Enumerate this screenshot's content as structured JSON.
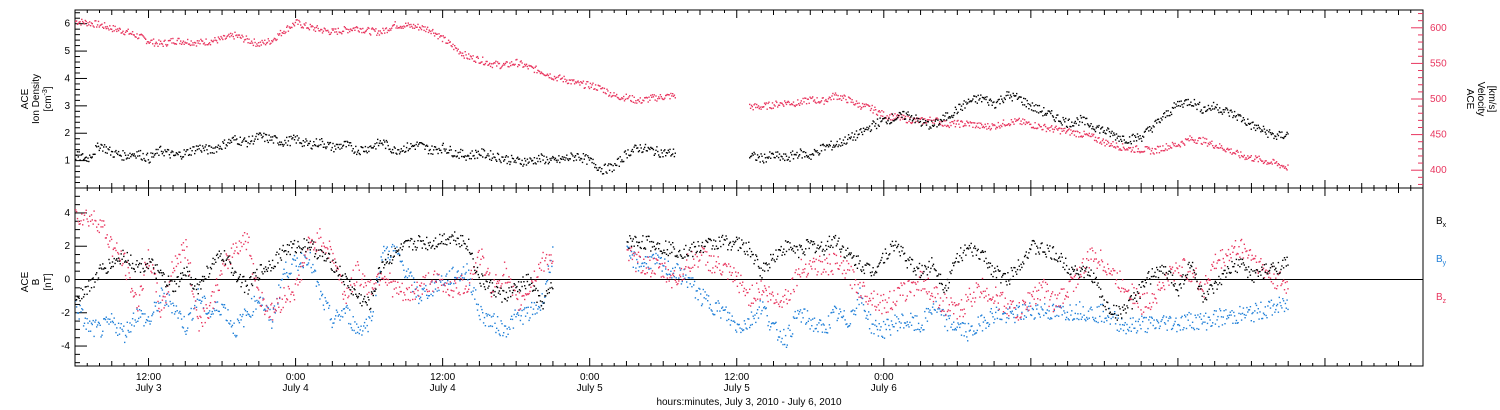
{
  "colors": {
    "black": "#000000",
    "pink": "#e8365f",
    "blue": "#1f7fd8"
  },
  "chart_data": [
    {
      "type": "scatter",
      "panel": "top",
      "ylabel_lines": [
        "ACE",
        "Ion Density",
        "[cm"
      ],
      "ylabel_sup": "-3",
      "ylabel_close": "]",
      "y2label_lines": [
        "ACE",
        "Velocity",
        "[km/s]"
      ],
      "yticks": [
        "1",
        "2",
        "3",
        "4",
        "5",
        "6"
      ],
      "ylim": [
        0,
        6.5
      ],
      "y2ticks": [
        "400",
        "450",
        "500",
        "550",
        "600"
      ],
      "y2lim": [
        375,
        625
      ],
      "x_unit": "hours since 2010-07-02 18:00",
      "xlim": [
        0,
        110
      ],
      "series": [
        {
          "axis": "left",
          "color": "#000000",
          "x": [
            0,
            1,
            2,
            3,
            4,
            5,
            6,
            7,
            8,
            9,
            10,
            11,
            12,
            13,
            14,
            15,
            16,
            17,
            18,
            19,
            20,
            21,
            22,
            23,
            24,
            25,
            26,
            27,
            28,
            29,
            30,
            31,
            32,
            33,
            34,
            35,
            36,
            37,
            38,
            39,
            40,
            41,
            42,
            43,
            44,
            45,
            46,
            47,
            48,
            49,
            50,
            51,
            52,
            53,
            54,
            55,
            56,
            57,
            58,
            59,
            60,
            61,
            62,
            63,
            64,
            65,
            66,
            67,
            68,
            69,
            70,
            71,
            72,
            73,
            74,
            75,
            76,
            77,
            78,
            79,
            80,
            81,
            82,
            83,
            84,
            85,
            86,
            87,
            88,
            89,
            90,
            91,
            92,
            93,
            94,
            95,
            96,
            97,
            98,
            99
          ],
          "y": [
            1.2,
            1.1,
            1.6,
            1.3,
            1.2,
            1.3,
            1.1,
            1.4,
            1.2,
            1.3,
            1.5,
            1.4,
            1.6,
            1.8,
            1.7,
            1.9,
            1.8,
            1.7,
            1.8,
            1.6,
            1.7,
            1.5,
            1.6,
            1.4,
            1.5,
            1.7,
            1.4,
            1.5,
            1.6,
            1.4,
            1.5,
            1.3,
            1.2,
            1.3,
            1.2,
            1.1,
            1.0,
            1.0,
            1.1,
            1.0,
            1.1,
            1.2,
            1.0,
            0.7,
            0.8,
            1.3,
            1.5,
            1.4,
            1.3,
            1.3,
            null,
            null,
            null,
            null,
            null,
            1.2,
            1.1,
            1.2,
            1.1,
            1.3,
            1.2,
            1.5,
            1.6,
            1.8,
            2.0,
            2.3,
            2.5,
            2.6,
            2.7,
            2.4,
            2.3,
            2.6,
            2.9,
            3.2,
            3.3,
            3.1,
            3.4,
            3.3,
            3.0,
            2.8,
            2.6,
            2.4,
            2.5,
            2.3,
            2.1,
            1.9,
            1.8,
            1.9,
            2.3,
            2.7,
            3.1,
            3.2,
            2.9,
            3.0,
            2.8,
            2.6,
            2.3,
            2.1,
            1.9,
            2.0
          ]
        },
        {
          "axis": "right",
          "color": "#e8365f",
          "x": [
            0,
            1,
            2,
            3,
            4,
            5,
            6,
            7,
            8,
            9,
            10,
            11,
            12,
            13,
            14,
            15,
            16,
            17,
            18,
            19,
            20,
            21,
            22,
            23,
            24,
            25,
            26,
            27,
            28,
            29,
            30,
            31,
            32,
            33,
            34,
            35,
            36,
            37,
            38,
            39,
            40,
            41,
            42,
            43,
            44,
            45,
            46,
            47,
            48,
            49,
            50,
            51,
            52,
            53,
            54,
            55,
            56,
            57,
            58,
            59,
            60,
            61,
            62,
            63,
            64,
            65,
            66,
            67,
            68,
            69,
            70,
            71,
            72,
            73,
            74,
            75,
            76,
            77,
            78,
            79,
            80,
            81,
            82,
            83,
            84,
            85,
            86,
            87,
            88,
            89,
            90,
            91,
            92,
            93,
            94,
            95,
            96,
            97,
            98,
            99
          ],
          "y": [
            610,
            608,
            605,
            600,
            596,
            590,
            582,
            578,
            583,
            582,
            580,
            582,
            585,
            590,
            584,
            578,
            583,
            597,
            608,
            602,
            598,
            595,
            598,
            601,
            596,
            595,
            605,
            604,
            602,
            598,
            585,
            572,
            560,
            556,
            550,
            548,
            552,
            545,
            540,
            532,
            528,
            522,
            520,
            515,
            505,
            503,
            498,
            502,
            504,
            506,
            null,
            null,
            null,
            null,
            null,
            490,
            490,
            493,
            496,
            495,
            500,
            498,
            506,
            500,
            492,
            487,
            478,
            475,
            472,
            470,
            472,
            466,
            466,
            466,
            462,
            463,
            468,
            469,
            465,
            461,
            458,
            455,
            452,
            447,
            440,
            435,
            431,
            430,
            428,
            434,
            437,
            445,
            442,
            436,
            430,
            422,
            418,
            414,
            410,
            404
          ]
        }
      ]
    },
    {
      "type": "scatter",
      "panel": "bottom",
      "ylabel_lines": [
        "ACE",
        "B",
        "[nT]"
      ],
      "yticks": [
        "-4",
        "-2",
        "0",
        "2",
        "4"
      ],
      "ylim": [
        -5.2,
        5.5
      ],
      "xlim": [
        0,
        110
      ],
      "xticks": [
        {
          "x": 6,
          "lines": [
            "12:00",
            "July 3"
          ]
        },
        {
          "x": 18,
          "lines": [
            "0:00",
            "July 4"
          ]
        },
        {
          "x": 30,
          "lines": [
            "12:00",
            "July 4"
          ]
        },
        {
          "x": 42,
          "lines": [
            "0:00",
            "July 5"
          ]
        },
        {
          "x": 54,
          "lines": [
            "12:00",
            "July 5"
          ]
        },
        {
          "x": 66,
          "lines": [
            "0:00",
            "July 6"
          ]
        }
      ],
      "xlabel": "hours:minutes, July  3, 2010 - July  6, 2010",
      "legend": [
        {
          "label": "B",
          "sub": "x",
          "color": "#000000"
        },
        {
          "label": "B",
          "sub": "y",
          "color": "#1f7fd8"
        },
        {
          "label": "B",
          "sub": "z",
          "color": "#e8365f"
        }
      ],
      "series": [
        {
          "name": "Bx",
          "color": "#000000",
          "x": [
            0,
            1,
            2,
            3,
            4,
            5,
            6,
            7,
            8,
            9,
            10,
            11,
            12,
            13,
            14,
            15,
            16,
            17,
            18,
            19,
            20,
            21,
            22,
            23,
            24,
            25,
            26,
            27,
            28,
            29,
            30,
            31,
            32,
            33,
            34,
            35,
            36,
            37,
            38,
            39,
            40,
            41,
            42,
            43,
            44,
            45,
            46,
            47,
            48,
            49,
            50,
            51,
            52,
            53,
            54,
            55,
            56,
            57,
            58,
            59,
            60,
            61,
            62,
            63,
            64,
            65,
            66,
            67,
            68,
            69,
            70,
            71,
            72,
            73,
            74,
            75,
            76,
            77,
            78,
            79,
            80,
            81,
            82,
            83,
            84,
            85,
            86,
            87,
            88,
            89,
            90,
            91,
            92,
            93,
            94,
            95,
            96,
            97,
            98,
            99
          ],
          "y": [
            -1.0,
            -0.5,
            0.5,
            1.0,
            1.5,
            0.8,
            1.0,
            0.2,
            -0.5,
            0.5,
            -0.5,
            0.8,
            1.5,
            0.5,
            -0.5,
            0.5,
            1.0,
            1.8,
            2.0,
            2.2,
            1.5,
            1.0,
            0.0,
            -1.0,
            -1.5,
            1.0,
            1.5,
            2.0,
            2.3,
            2.2,
            2.5,
            2.6,
            2.2,
            0.0,
            -0.5,
            -1.0,
            -0.5,
            0.0,
            -1.5,
            -0.3,
            null,
            null,
            null,
            null,
            null,
            2.3,
            2.3,
            2.2,
            2.0,
            1.8,
            1.7,
            2.0,
            2.2,
            2.3,
            2.2,
            1.8,
            0.5,
            1.5,
            2.0,
            1.8,
            2.1,
            1.9,
            2.5,
            1.5,
            1.0,
            0.5,
            1.5,
            2.2,
            1.0,
            0.5,
            1.0,
            -0.5,
            1.5,
            1.8,
            1.5,
            0.5,
            0.0,
            1.0,
            2.0,
            1.8,
            1.5,
            0.8,
            0.5,
            0.3,
            -1.5,
            -2.0,
            -1.5,
            -0.5,
            0.5,
            0.5,
            -0.5,
            1.0,
            -1.0,
            -0.5,
            0.5,
            1.0,
            0.3,
            0.5,
            0.8,
            1.0
          ]
        },
        {
          "name": "By",
          "color": "#1f7fd8",
          "x": [
            0,
            1,
            2,
            3,
            4,
            5,
            6,
            7,
            8,
            9,
            10,
            11,
            12,
            13,
            14,
            15,
            16,
            17,
            18,
            19,
            20,
            21,
            22,
            23,
            24,
            25,
            26,
            27,
            28,
            29,
            30,
            31,
            32,
            33,
            34,
            35,
            36,
            37,
            38,
            39,
            40,
            41,
            42,
            43,
            44,
            45,
            46,
            47,
            48,
            49,
            50,
            51,
            52,
            53,
            54,
            55,
            56,
            57,
            58,
            59,
            60,
            61,
            62,
            63,
            64,
            65,
            66,
            67,
            68,
            69,
            70,
            71,
            72,
            73,
            74,
            75,
            76,
            77,
            78,
            79,
            80,
            81,
            82,
            83,
            84,
            85,
            86,
            87,
            88,
            89,
            90,
            91,
            92,
            93,
            94,
            95,
            96,
            97,
            98,
            99
          ],
          "y": [
            -1.5,
            -2.8,
            -3.0,
            -2.5,
            -3.2,
            -2.0,
            -2.5,
            -1.0,
            -1.5,
            -2.8,
            -1.0,
            -2.0,
            -1.5,
            -3.0,
            -2.0,
            -1.0,
            -2.5,
            0.5,
            1.0,
            1.5,
            -1.0,
            -2.5,
            -1.8,
            -3.0,
            -2.5,
            1.5,
            1.8,
            0.5,
            -1.0,
            -0.5,
            0.0,
            0.3,
            0.5,
            -2.0,
            -2.5,
            -3.0,
            -2.2,
            -2.0,
            -1.5,
            1.8,
            null,
            null,
            null,
            null,
            null,
            1.5,
            1.0,
            1.2,
            0.8,
            0.5,
            0.0,
            -1.0,
            -1.5,
            -2.0,
            -2.8,
            -2.5,
            -1.5,
            -3.0,
            -3.5,
            -2.0,
            -2.5,
            -3.0,
            -2.0,
            -2.5,
            -1.0,
            -2.8,
            -3.0,
            -2.5,
            -2.5,
            -2.8,
            -1.5,
            -2.5,
            -2.8,
            -3.2,
            -2.5,
            -2.0,
            -2.2,
            -2.0,
            -1.8,
            -1.8,
            -2.0,
            -1.9,
            -1.8,
            -2.0,
            -2.0,
            -2.5,
            -2.8,
            -2.6,
            -2.7,
            -2.5,
            -2.6,
            -2.4,
            -2.5,
            -2.3,
            -2.2,
            -2.1,
            -2.0,
            -1.8,
            -1.6,
            -1.5
          ]
        },
        {
          "name": "Bz",
          "color": "#e8365f",
          "x": [
            0,
            1,
            2,
            3,
            4,
            5,
            6,
            7,
            8,
            9,
            10,
            11,
            12,
            13,
            14,
            15,
            16,
            17,
            18,
            19,
            20,
            21,
            22,
            23,
            24,
            25,
            26,
            27,
            28,
            29,
            30,
            31,
            32,
            33,
            34,
            35,
            36,
            37,
            38,
            39,
            40,
            41,
            42,
            43,
            44,
            45,
            46,
            47,
            48,
            49,
            50,
            51,
            52,
            53,
            54,
            55,
            56,
            57,
            58,
            59,
            60,
            61,
            62,
            63,
            64,
            65,
            66,
            67,
            68,
            69,
            70,
            71,
            72,
            73,
            74,
            75,
            76,
            77,
            78,
            79,
            80,
            81,
            82,
            83,
            84,
            85,
            86,
            87,
            88,
            89,
            90,
            91,
            92,
            93,
            94,
            95,
            96,
            97,
            98,
            99
          ],
          "y": [
            4.0,
            3.8,
            3.5,
            2.0,
            1.0,
            -1.5,
            1.5,
            -2.0,
            1.0,
            2.0,
            -2.5,
            -1.5,
            0.5,
            2.0,
            2.5,
            -1.0,
            -2.0,
            -1.0,
            -0.5,
            2.0,
            2.5,
            1.5,
            -1.0,
            0.5,
            -0.5,
            0.5,
            -0.5,
            -1.0,
            -0.5,
            0.0,
            -0.3,
            -0.5,
            -0.2,
            1.5,
            -0.5,
            0.5,
            -1.5,
            -0.5,
            1.0,
            1.5,
            null,
            null,
            null,
            null,
            null,
            1.5,
            1.0,
            0.8,
            0.5,
            0.0,
            1.0,
            1.5,
            1.0,
            0.5,
            0.0,
            -1.0,
            -0.5,
            -1.2,
            -1.0,
            0.5,
            1.0,
            0.8,
            1.0,
            0.5,
            -0.5,
            -1.0,
            -1.5,
            -1.0,
            -0.5,
            0.0,
            -0.8,
            -1.5,
            -2.0,
            -1.0,
            -0.5,
            -1.0,
            -1.5,
            -2.0,
            -1.0,
            -0.5,
            -1.5,
            -0.5,
            0.5,
            1.5,
            1.0,
            0.0,
            -0.5,
            -1.5,
            -1.0,
            0.0,
            0.8,
            0.5,
            -0.5,
            1.0,
            1.5,
            2.0,
            1.5,
            0.5,
            0.0,
            -0.5
          ]
        }
      ]
    }
  ]
}
